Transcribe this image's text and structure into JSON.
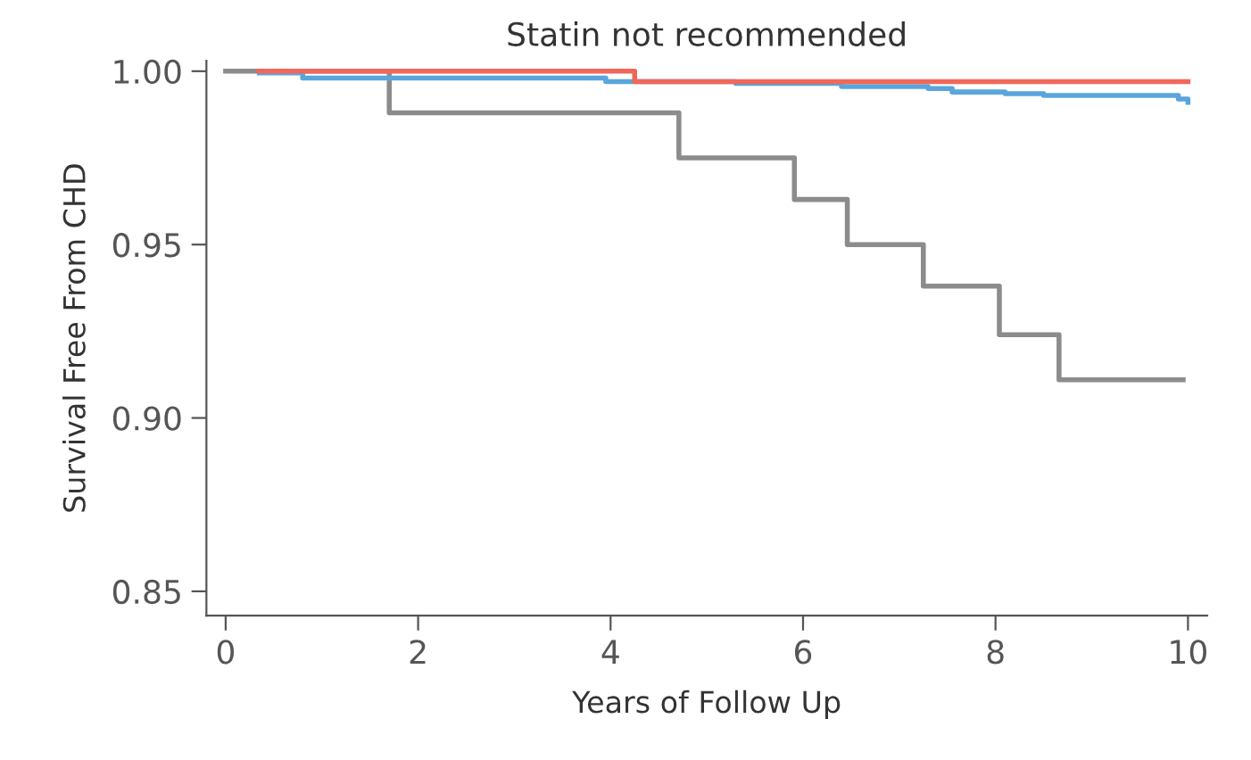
{
  "chart_data": {
    "type": "step",
    "title": "Statin not recommended",
    "xlabel": "Years of Follow Up",
    "ylabel": "Survival Free From CHD",
    "xlim": [
      -0.2,
      10.2
    ],
    "ylim": [
      0.843,
      1.003
    ],
    "xticks": [
      0,
      2,
      4,
      6,
      8,
      10
    ],
    "yticks": [
      {
        "value": 0.85,
        "label": "0.85"
      },
      {
        "value": 0.9,
        "label": "0.90"
      },
      {
        "value": 0.95,
        "label": "0.95"
      },
      {
        "value": 1.0,
        "label": "1.00"
      }
    ],
    "grid": false,
    "legend": false,
    "line_style": "solid",
    "marker": "none",
    "series": [
      {
        "color": "#8c8c8c",
        "x": [
          0,
          1.7,
          4.71,
          5.91,
          6.46,
          7.25,
          8.04,
          8.66,
          9.95
        ],
        "values": [
          1.0,
          0.988,
          0.975,
          0.963,
          0.95,
          0.938,
          0.924,
          0.911,
          0.911
        ]
      },
      {
        "color": "#5aa5dc",
        "x": [
          0.35,
          0.8,
          3.05,
          3.95,
          5.3,
          6.4,
          7.3,
          7.55,
          8.1,
          8.5,
          9.9,
          10.0
        ],
        "values": [
          0.9995,
          0.998,
          0.998,
          0.997,
          0.9965,
          0.9956,
          0.995,
          0.994,
          0.9935,
          0.993,
          0.992,
          0.991
        ]
      },
      {
        "color": "#f0685a",
        "x": [
          0.35,
          4.25,
          10.0
        ],
        "values": [
          1.0,
          0.997,
          0.997
        ]
      }
    ]
  }
}
